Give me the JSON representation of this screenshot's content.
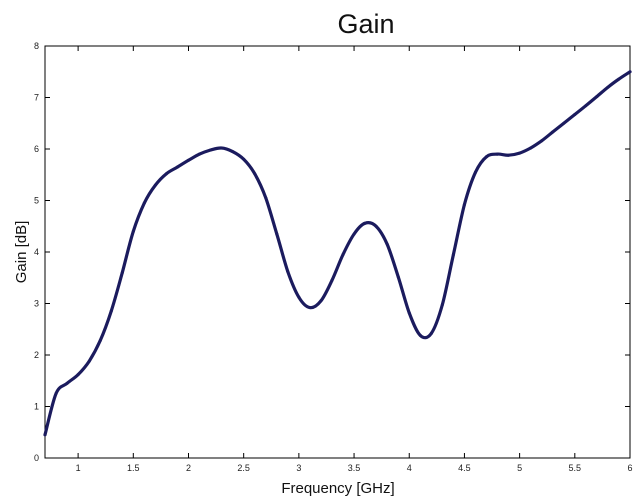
{
  "chart_data": {
    "type": "line",
    "title": "Gain",
    "xlabel": "Frequency [GHz]",
    "ylabel": "Gain [dB]",
    "xlim": [
      0.7,
      6
    ],
    "ylim": [
      0,
      8
    ],
    "xticks": [
      1,
      1.5,
      2,
      2.5,
      3,
      3.5,
      4,
      4.5,
      5,
      5.5,
      6
    ],
    "xtick_labels": [
      "1",
      "1.5",
      "2",
      "2.5",
      "3",
      "3.5",
      "4",
      "4.5",
      "5",
      "5.5",
      "6"
    ],
    "yticks": [
      0,
      1,
      2,
      3,
      4,
      5,
      6,
      7,
      8
    ],
    "ytick_labels": [
      "0",
      "1",
      "2",
      "3",
      "4",
      "5",
      "6",
      "7",
      "8"
    ],
    "grid": false,
    "line_color": "#1b1b5e",
    "series": [
      {
        "name": "",
        "x": [
          0.7,
          0.8,
          0.9,
          1.0,
          1.1,
          1.2,
          1.3,
          1.4,
          1.5,
          1.6,
          1.7,
          1.8,
          1.9,
          2.0,
          2.1,
          2.2,
          2.3,
          2.4,
          2.5,
          2.6,
          2.7,
          2.8,
          2.9,
          3.0,
          3.1,
          3.2,
          3.3,
          3.4,
          3.5,
          3.6,
          3.7,
          3.8,
          3.9,
          4.0,
          4.1,
          4.2,
          4.3,
          4.4,
          4.5,
          4.6,
          4.7,
          4.8,
          4.9,
          5.0,
          5.1,
          5.2,
          5.3,
          5.4,
          5.5,
          5.6,
          5.7,
          5.8,
          5.9,
          6.0
        ],
        "y": [
          0.45,
          1.25,
          1.45,
          1.62,
          1.88,
          2.28,
          2.85,
          3.6,
          4.4,
          4.95,
          5.3,
          5.52,
          5.65,
          5.78,
          5.9,
          5.98,
          6.02,
          5.95,
          5.8,
          5.52,
          5.05,
          4.35,
          3.62,
          3.12,
          2.92,
          3.05,
          3.45,
          3.95,
          4.35,
          4.56,
          4.5,
          4.15,
          3.52,
          2.82,
          2.38,
          2.42,
          2.98,
          3.95,
          4.92,
          5.55,
          5.85,
          5.9,
          5.88,
          5.92,
          6.02,
          6.16,
          6.33,
          6.5,
          6.67,
          6.84,
          7.02,
          7.2,
          7.36,
          7.5
        ]
      }
    ]
  }
}
